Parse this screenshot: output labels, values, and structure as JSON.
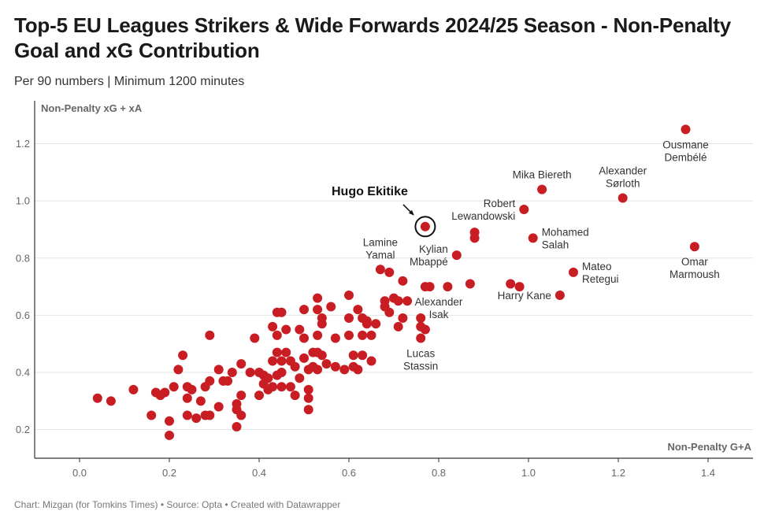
{
  "title": "Top-5 EU Leagues Strikers & Wide Forwards 2024/25 Season - Non-Penalty Goal and xG Contribution",
  "subtitle": "Per 90 numbers | Minimum 1200 minutes",
  "footer": "Chart: Mizgan (for Tomkins Times) • Source: Opta • Created with Datawrapper",
  "colors": {
    "dot": "#c91d24",
    "ring": "#111111"
  },
  "chart_data": {
    "type": "scatter",
    "xlabel": "Non-Penalty G+A",
    "ylabel": "Non-Penalty xG + xA",
    "xlim": [
      -0.1,
      1.5
    ],
    "ylim": [
      0.1,
      1.35
    ],
    "xticks": [
      "0.0",
      "0.2",
      "0.4",
      "0.6",
      "0.8",
      "1.0",
      "1.2",
      "1.4"
    ],
    "yticks": [
      "0.2",
      "0.4",
      "0.6",
      "0.8",
      "1.0",
      "1.2"
    ],
    "highlight": {
      "name": "Hugo Ekitike",
      "x": 0.77,
      "y": 0.91
    },
    "labeled": [
      {
        "lines": [
          "Ousmane",
          "Dembélé"
        ],
        "x": 1.35,
        "y": 1.25,
        "pos": "below"
      },
      {
        "lines": [
          "Mika Biereth"
        ],
        "x": 1.03,
        "y": 1.04,
        "pos": "above"
      },
      {
        "lines": [
          "Alexander",
          "Sørloth"
        ],
        "x": 1.21,
        "y": 1.01,
        "pos": "above"
      },
      {
        "lines": [
          "Robert",
          "Lewandowski"
        ],
        "x": 0.99,
        "y": 0.97,
        "pos": "left"
      },
      {
        "lines": [
          "Omar",
          "Marmoush"
        ],
        "x": 1.37,
        "y": 0.84,
        "pos": "below"
      },
      {
        "lines": [
          "Mohamed",
          "Salah"
        ],
        "x": 1.01,
        "y": 0.87,
        "pos": "right"
      },
      {
        "lines": [
          "Lamine",
          "Yamal"
        ],
        "x": 0.67,
        "y": 0.76,
        "pos": "above"
      },
      {
        "lines": [
          "Kylian",
          "Mbappé"
        ],
        "x": 0.84,
        "y": 0.81,
        "pos": "left"
      },
      {
        "lines": [
          "Mateo",
          "Retegui"
        ],
        "x": 1.1,
        "y": 0.75,
        "pos": "right"
      },
      {
        "lines": [
          "Harry Kane"
        ],
        "x": 1.07,
        "y": 0.67,
        "pos": "left"
      },
      {
        "lines": [
          "Alexander",
          "Isak"
        ],
        "x": 0.8,
        "y": 0.7,
        "pos": "below"
      },
      {
        "lines": [
          "Lucas",
          "Stassin"
        ],
        "x": 0.76,
        "y": 0.52,
        "pos": "below"
      }
    ],
    "points": [
      [
        0.04,
        0.31
      ],
      [
        0.07,
        0.3
      ],
      [
        0.12,
        0.34
      ],
      [
        0.16,
        0.25
      ],
      [
        0.17,
        0.33
      ],
      [
        0.18,
        0.32
      ],
      [
        0.19,
        0.33
      ],
      [
        0.2,
        0.23
      ],
      [
        0.2,
        0.18
      ],
      [
        0.21,
        0.35
      ],
      [
        0.22,
        0.41
      ],
      [
        0.23,
        0.46
      ],
      [
        0.24,
        0.35
      ],
      [
        0.24,
        0.31
      ],
      [
        0.24,
        0.25
      ],
      [
        0.25,
        0.34
      ],
      [
        0.26,
        0.24
      ],
      [
        0.27,
        0.3
      ],
      [
        0.28,
        0.35
      ],
      [
        0.28,
        0.25
      ],
      [
        0.29,
        0.53
      ],
      [
        0.29,
        0.37
      ],
      [
        0.29,
        0.25
      ],
      [
        0.31,
        0.41
      ],
      [
        0.31,
        0.28
      ],
      [
        0.32,
        0.37
      ],
      [
        0.33,
        0.37
      ],
      [
        0.34,
        0.4
      ],
      [
        0.35,
        0.29
      ],
      [
        0.35,
        0.21
      ],
      [
        0.35,
        0.27
      ],
      [
        0.36,
        0.43
      ],
      [
        0.36,
        0.32
      ],
      [
        0.36,
        0.25
      ],
      [
        0.38,
        0.4
      ],
      [
        0.39,
        0.52
      ],
      [
        0.4,
        0.4
      ],
      [
        0.4,
        0.32
      ],
      [
        0.41,
        0.39
      ],
      [
        0.41,
        0.36
      ],
      [
        0.42,
        0.38
      ],
      [
        0.42,
        0.34
      ],
      [
        0.43,
        0.56
      ],
      [
        0.43,
        0.44
      ],
      [
        0.43,
        0.35
      ],
      [
        0.44,
        0.61
      ],
      [
        0.44,
        0.53
      ],
      [
        0.44,
        0.47
      ],
      [
        0.44,
        0.39
      ],
      [
        0.45,
        0.61
      ],
      [
        0.45,
        0.44
      ],
      [
        0.45,
        0.4
      ],
      [
        0.45,
        0.35
      ],
      [
        0.46,
        0.55
      ],
      [
        0.46,
        0.47
      ],
      [
        0.47,
        0.35
      ],
      [
        0.47,
        0.44
      ],
      [
        0.48,
        0.32
      ],
      [
        0.48,
        0.42
      ],
      [
        0.49,
        0.55
      ],
      [
        0.49,
        0.38
      ],
      [
        0.5,
        0.62
      ],
      [
        0.5,
        0.52
      ],
      [
        0.5,
        0.45
      ],
      [
        0.51,
        0.41
      ],
      [
        0.51,
        0.34
      ],
      [
        0.51,
        0.31
      ],
      [
        0.51,
        0.27
      ],
      [
        0.52,
        0.47
      ],
      [
        0.52,
        0.42
      ],
      [
        0.53,
        0.66
      ],
      [
        0.53,
        0.62
      ],
      [
        0.53,
        0.53
      ],
      [
        0.53,
        0.47
      ],
      [
        0.53,
        0.41
      ],
      [
        0.54,
        0.59
      ],
      [
        0.54,
        0.57
      ],
      [
        0.54,
        0.46
      ],
      [
        0.55,
        0.43
      ],
      [
        0.56,
        0.63
      ],
      [
        0.57,
        0.52
      ],
      [
        0.57,
        0.42
      ],
      [
        0.59,
        0.41
      ],
      [
        0.6,
        0.67
      ],
      [
        0.6,
        0.59
      ],
      [
        0.6,
        0.53
      ],
      [
        0.61,
        0.46
      ],
      [
        0.61,
        0.42
      ],
      [
        0.62,
        0.62
      ],
      [
        0.62,
        0.41
      ],
      [
        0.63,
        0.59
      ],
      [
        0.63,
        0.53
      ],
      [
        0.63,
        0.46
      ],
      [
        0.64,
        0.58
      ],
      [
        0.64,
        0.57
      ],
      [
        0.65,
        0.53
      ],
      [
        0.65,
        0.44
      ],
      [
        0.66,
        0.57
      ],
      [
        0.67,
        0.76
      ],
      [
        0.68,
        0.65
      ],
      [
        0.68,
        0.63
      ],
      [
        0.69,
        0.75
      ],
      [
        0.69,
        0.61
      ],
      [
        0.7,
        0.66
      ],
      [
        0.71,
        0.65
      ],
      [
        0.71,
        0.56
      ],
      [
        0.72,
        0.72
      ],
      [
        0.72,
        0.59
      ],
      [
        0.73,
        0.65
      ],
      [
        0.76,
        0.59
      ],
      [
        0.76,
        0.56
      ],
      [
        0.76,
        0.52
      ],
      [
        0.77,
        0.55
      ],
      [
        0.77,
        0.7
      ],
      [
        0.78,
        0.7
      ],
      [
        0.82,
        0.7
      ],
      [
        0.84,
        0.81
      ],
      [
        0.87,
        0.71
      ],
      [
        0.88,
        0.89
      ],
      [
        0.88,
        0.87
      ],
      [
        0.96,
        0.71
      ],
      [
        0.98,
        0.7
      ],
      [
        0.99,
        0.97
      ],
      [
        1.01,
        0.87
      ],
      [
        1.03,
        1.04
      ],
      [
        1.07,
        0.67
      ],
      [
        1.1,
        0.75
      ],
      [
        1.21,
        1.01
      ],
      [
        1.35,
        1.25
      ],
      [
        1.37,
        0.84
      ]
    ]
  }
}
